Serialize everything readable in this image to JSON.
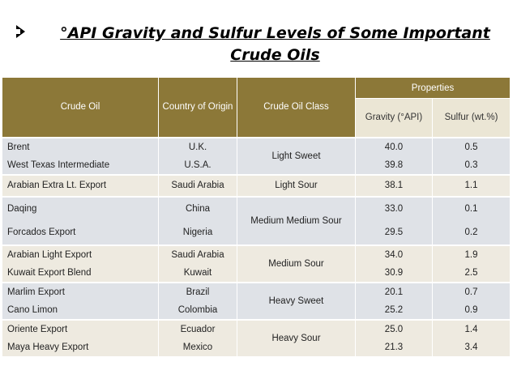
{
  "title": "°API Gravity and Sulfur Levels of Some Important Crude Oils",
  "table": {
    "headers": {
      "crude_oil": "Crude Oil",
      "country": "Country of Origin",
      "class": "Crude Oil Class",
      "properties": "Properties",
      "gravity": "Gravity (°API)",
      "sulfur": "Sulfur (wt.%)"
    },
    "groups": [
      {
        "class": "Light Sweet",
        "shade": "a",
        "rows": [
          {
            "crude": "Brent",
            "country": "U.K.",
            "gravity": "40.0",
            "sulfur": "0.5"
          },
          {
            "crude": "West Texas Intermediate",
            "country": "U.S.A.",
            "gravity": "39.8",
            "sulfur": "0.3"
          }
        ]
      },
      {
        "class": "Light Sour",
        "shade": "b",
        "rows": [
          {
            "crude": "Arabian Extra Lt. Export",
            "country": "Saudi Arabia",
            "gravity": "38.1",
            "sulfur": "1.1"
          }
        ]
      },
      {
        "class": "Medium Medium Sour",
        "shade": "a",
        "rows": [
          {
            "crude": "Daqing",
            "country": "China",
            "gravity": "33.0",
            "sulfur": "0.1"
          },
          {
            "crude": "Forcados Export",
            "country": "Nigeria",
            "gravity": "29.5",
            "sulfur": "0.2"
          }
        ]
      },
      {
        "class": "Medium Sour",
        "shade": "b",
        "rows": [
          {
            "crude": "Arabian Light Export",
            "country": "Saudi Arabia",
            "gravity": "34.0",
            "sulfur": "1.9"
          },
          {
            "crude": "Kuwait Export Blend",
            "country": "Kuwait",
            "gravity": "30.9",
            "sulfur": "2.5"
          }
        ]
      },
      {
        "class": "Heavy Sweet",
        "shade": "a",
        "rows": [
          {
            "crude": "Marlim Export",
            "country": "Brazil",
            "gravity": "20.1",
            "sulfur": "0.7"
          },
          {
            "crude": "Cano Limon",
            "country": "Colombia",
            "gravity": "25.2",
            "sulfur": "0.9"
          }
        ]
      },
      {
        "class": "Heavy Sour",
        "shade": "b",
        "rows": [
          {
            "crude": "Oriente Export",
            "country": "Ecuador",
            "gravity": "25.0",
            "sulfur": "1.4"
          },
          {
            "crude": "Maya Heavy Export",
            "country": "Mexico",
            "gravity": "21.3",
            "sulfur": "3.4"
          }
        ]
      }
    ]
  }
}
